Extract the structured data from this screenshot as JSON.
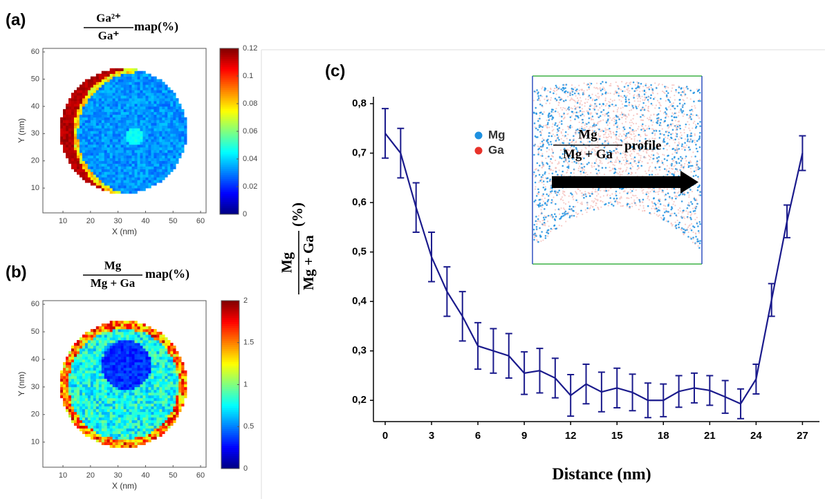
{
  "chart_data": [
    {
      "type": "heatmap",
      "label": "(a)",
      "title": {
        "numerator": "Ga²⁺",
        "denominator": "Ga⁺",
        "suffix": "map(%)"
      },
      "xlabel": "X  (nm)",
      "ylabel": "Y (nm)",
      "xlim": [
        2.7,
        62
      ],
      "xticks": [
        10,
        20,
        30,
        40,
        50,
        60
      ],
      "ylim": [
        0.9,
        61.3
      ],
      "yticks": [
        10,
        20,
        30,
        40,
        50,
        60
      ],
      "colormap": "jet",
      "colorbar": {
        "lim": [
          0,
          0.12
        ],
        "ticks": [
          0,
          0.02,
          0.04,
          0.06,
          0.08,
          0.1,
          0.12
        ]
      }
    },
    {
      "type": "heatmap",
      "label": "(b)",
      "title": {
        "numerator": "Mg",
        "denominator": "Mg + Ga",
        "suffix": "map(%)"
      },
      "xlabel": "X (nm)",
      "ylabel": "Y (nm)",
      "xlim": [
        2.7,
        62
      ],
      "xticks": [
        10,
        20,
        30,
        40,
        50,
        60
      ],
      "ylim": [
        0.9,
        61.3
      ],
      "yticks": [
        10,
        20,
        30,
        40,
        50,
        60
      ],
      "colormap": "jet",
      "colorbar": {
        "lim": [
          0,
          2
        ],
        "ticks": [
          0,
          0.5,
          1,
          1.5,
          2
        ]
      }
    },
    {
      "type": "line",
      "label": "(c)",
      "xlabel": "Distance (nm)",
      "ylabel": {
        "numerator": "Mg",
        "denominator": "Mg + Ga",
        "suffix": "(%)"
      },
      "x": [
        0,
        1,
        2,
        3,
        4,
        5,
        6,
        7,
        8,
        9,
        10,
        11,
        12,
        13,
        14,
        15,
        16,
        17,
        18,
        19,
        20,
        21,
        22,
        23,
        24,
        25,
        26,
        27
      ],
      "values": [
        0.74,
        0.7,
        0.59,
        0.49,
        0.42,
        0.37,
        0.31,
        0.3,
        0.29,
        0.255,
        0.26,
        0.245,
        0.21,
        0.233,
        0.217,
        0.225,
        0.216,
        0.2,
        0.2,
        0.218,
        0.225,
        0.22,
        0.207,
        0.193,
        0.243,
        0.403,
        0.562,
        0.7
      ],
      "errors": [
        0.05,
        0.05,
        0.05,
        0.05,
        0.05,
        0.05,
        0.047,
        0.045,
        0.045,
        0.043,
        0.045,
        0.04,
        0.042,
        0.04,
        0.04,
        0.04,
        0.037,
        0.035,
        0.033,
        0.032,
        0.03,
        0.03,
        0.033,
        0.03,
        0.03,
        0.033,
        0.033,
        0.035
      ],
      "color": "#1a1a8c",
      "xlim": [
        -0.76,
        28.1
      ],
      "xticks": [
        0,
        3,
        6,
        9,
        12,
        15,
        18,
        21,
        24,
        27
      ],
      "ylim": [
        0.157,
        0.814
      ],
      "yticks": [
        {
          "value": 0.2,
          "label": "0,2"
        },
        {
          "value": 0.3,
          "label": "0,3"
        },
        {
          "value": 0.4,
          "label": "0,4"
        },
        {
          "value": 0.5,
          "label": "0,5"
        },
        {
          "value": 0.6,
          "label": "0,6"
        },
        {
          "value": 0.7,
          "label": "0,7"
        },
        {
          "value": 0.8,
          "label": "0,8"
        }
      ],
      "legend": [
        {
          "name": "Mg",
          "color": "#1e90e0"
        },
        {
          "name": "Ga",
          "color": "#e8322a"
        }
      ],
      "inset_label": {
        "numerator": "Mg",
        "denominator": "Mg + Ga",
        "suffix": "profile"
      }
    }
  ]
}
